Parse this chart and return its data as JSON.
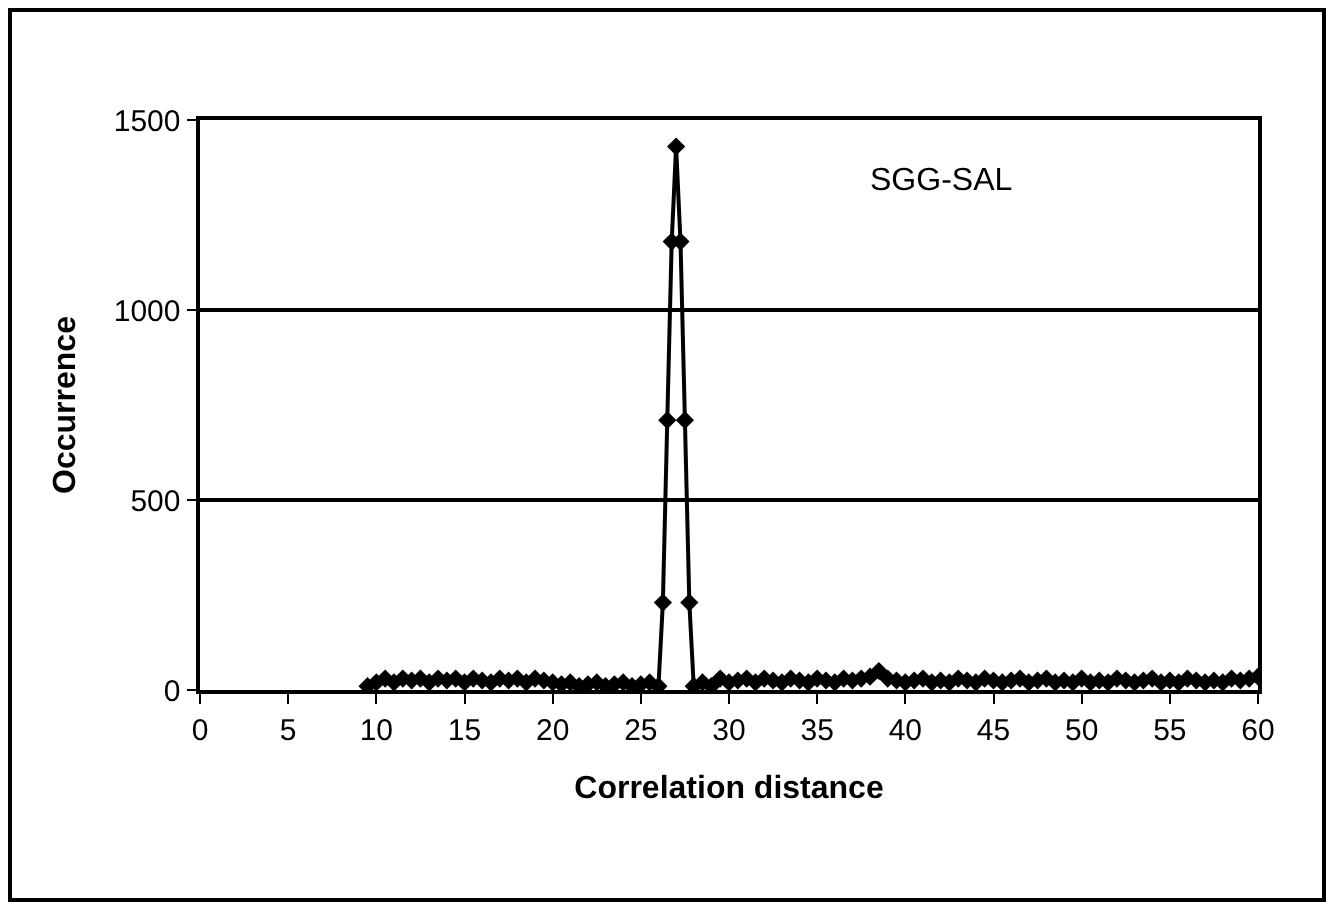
{
  "chart_data": {
    "type": "line",
    "xlabel": "Correlation distance",
    "ylabel": "Occurrence",
    "annotations": [
      "SGG-SAL"
    ],
    "x": [
      9.5,
      10,
      10.5,
      11,
      11.5,
      12,
      12.5,
      13,
      13.5,
      14,
      14.5,
      15,
      15.5,
      16,
      16.5,
      17,
      17.5,
      18,
      18.5,
      19,
      19.5,
      20,
      20.5,
      21,
      21.5,
      22,
      22.5,
      23,
      23.5,
      24,
      24.5,
      25,
      25.5,
      26,
      26.25,
      26.5,
      26.75,
      27,
      27.25,
      27.5,
      27.75,
      28,
      28.5,
      29,
      29.5,
      30,
      30.5,
      31,
      31.5,
      32,
      32.5,
      33,
      33.5,
      34,
      34.5,
      35,
      35.5,
      36,
      36.5,
      37,
      37.5,
      38,
      38.5,
      39,
      39.5,
      40,
      40.5,
      41,
      41.5,
      42,
      42.5,
      43,
      43.5,
      44,
      44.5,
      45,
      45.5,
      46,
      46.5,
      47,
      47.5,
      48,
      48.5,
      49,
      49.5,
      50,
      50.5,
      51,
      51.5,
      52,
      52.5,
      53,
      53.5,
      54,
      54.5,
      55,
      55.5,
      56,
      56.5,
      57,
      57.5,
      58,
      58.5,
      59,
      59.5,
      60
    ],
    "series": [
      {
        "color": "#000000",
        "values": [
          10,
          20,
          30,
          20,
          30,
          25,
          30,
          20,
          30,
          25,
          30,
          20,
          30,
          25,
          20,
          30,
          25,
          30,
          20,
          30,
          25,
          20,
          15,
          20,
          10,
          15,
          20,
          10,
          15,
          20,
          10,
          15,
          20,
          10,
          230,
          710,
          1180,
          1430,
          1180,
          710,
          230,
          10,
          20,
          10,
          30,
          20,
          25,
          30,
          20,
          30,
          25,
          20,
          30,
          25,
          20,
          30,
          25,
          20,
          30,
          25,
          30,
          35,
          50,
          30,
          25,
          20,
          25,
          30,
          20,
          25,
          20,
          30,
          25,
          20,
          30,
          25,
          20,
          25,
          30,
          20,
          25,
          30,
          20,
          25,
          20,
          30,
          20,
          25,
          20,
          30,
          25,
          20,
          25,
          30,
          20,
          25,
          20,
          30,
          25,
          20,
          25,
          20,
          30,
          25,
          30,
          35
        ]
      }
    ],
    "xlim": [
      0,
      60
    ],
    "xticks": [
      0,
      5,
      10,
      15,
      20,
      25,
      30,
      35,
      40,
      45,
      50,
      55,
      60
    ],
    "ylim": [
      0,
      1500
    ],
    "yticks": [
      0,
      500,
      1000,
      1500
    ],
    "grid": "y",
    "marker": "diamond",
    "line_style": "solid"
  }
}
